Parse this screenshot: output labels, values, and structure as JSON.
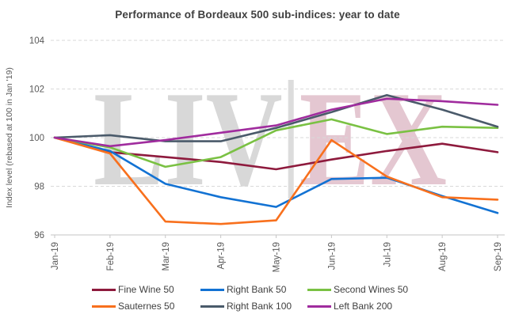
{
  "title": "Performance of Bordeaux 500 sub-indices: year to date",
  "y_axis": {
    "label": "Index level (rebased at 100 in Jan '19)",
    "ticks": [
      96,
      98,
      100,
      102,
      104
    ],
    "min": 96,
    "max": 104
  },
  "x_axis": {
    "categories": [
      "Jan-19",
      "Feb-19",
      "Mar-19",
      "Apr-19",
      "May-19",
      "Jun-19",
      "Jul-19",
      "Aug-19",
      "Sep-19"
    ]
  },
  "watermark": {
    "text_left": "LIV",
    "text_right": "EX",
    "color_left": "#d8d8d8",
    "color_right": "#e4c7d1",
    "bar_color": "#dcdcdc"
  },
  "style": {
    "title_color": "#3f3f3f",
    "axis_text_color": "#595959",
    "gridline_color": "#d9d9d9",
    "axis_line_color": "#c6c6c6",
    "legend_text_color": "#404040"
  },
  "chart_data": {
    "type": "line",
    "title": "Performance of Bordeaux 500 sub-indices: year to date",
    "xlabel": "",
    "ylabel": "Index level (rebased at 100 in Jan '19)",
    "ylim": [
      96,
      104
    ],
    "grid": true,
    "legend_position": "bottom",
    "categories": [
      "Jan-19",
      "Feb-19",
      "Mar-19",
      "Apr-19",
      "May-19",
      "Jun-19",
      "Jul-19",
      "Aug-19",
      "Sep-19"
    ],
    "series": [
      {
        "name": "Fine Wine 50",
        "color": "#8e1a3d",
        "values": [
          100,
          99.4,
          99.2,
          99.0,
          98.7,
          99.1,
          99.45,
          99.75,
          99.4
        ]
      },
      {
        "name": "Right Bank 50",
        "color": "#1272d3",
        "values": [
          100,
          99.45,
          98.1,
          97.55,
          97.15,
          98.3,
          98.35,
          97.6,
          96.9
        ]
      },
      {
        "name": "Second Wines 50",
        "color": "#7ac143",
        "values": [
          100,
          99.6,
          98.8,
          99.2,
          100.3,
          100.75,
          100.15,
          100.45,
          100.4
        ]
      },
      {
        "name": "Sauternes 50",
        "color": "#f8701d",
        "values": [
          100,
          99.35,
          96.55,
          96.45,
          96.6,
          99.9,
          98.4,
          97.55,
          97.45
        ]
      },
      {
        "name": "Right Bank 100",
        "color": "#4a5a6a",
        "values": [
          100,
          100.1,
          99.85,
          99.85,
          100.4,
          101.05,
          101.75,
          101.15,
          100.45
        ]
      },
      {
        "name": "Left Bank 200",
        "color": "#a02c9e",
        "values": [
          100,
          99.65,
          99.9,
          100.2,
          100.5,
          101.15,
          101.6,
          101.5,
          101.35
        ]
      }
    ]
  }
}
